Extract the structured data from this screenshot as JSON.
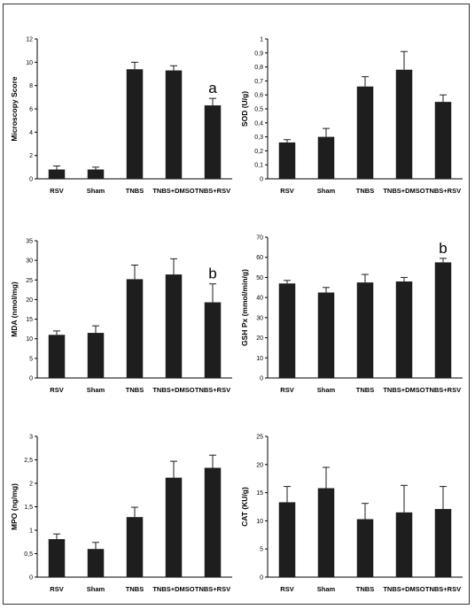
{
  "colors": {
    "bar": "#1e1e1e",
    "axis": "#000000",
    "border": "#333333"
  },
  "chart_data": [
    {
      "type": "bar",
      "ylabel": "Microscopy Score",
      "categories": [
        "RSV",
        "Sham",
        "TNBS",
        "TNBS+DMSO",
        "TNBS+RSV"
      ],
      "values": [
        0.8,
        0.8,
        9.4,
        9.3,
        6.3
      ],
      "errors": [
        0.3,
        0.2,
        0.6,
        0.4,
        0.6
      ],
      "ylim": [
        0,
        12
      ],
      "yticks": [
        "0",
        "2",
        "4",
        "6",
        "8",
        "10",
        "12"
      ],
      "annotations": [
        {
          "category": "TNBS+RSV",
          "text": "a"
        }
      ]
    },
    {
      "type": "bar",
      "ylabel": "SOD (U/g)",
      "categories": [
        "RSV",
        "Sham",
        "TNBS",
        "TNBS+DMSO",
        "TNBS+RSV"
      ],
      "values": [
        0.26,
        0.3,
        0.66,
        0.78,
        0.55
      ],
      "errors": [
        0.02,
        0.06,
        0.07,
        0.13,
        0.05
      ],
      "ylim": [
        0,
        1
      ],
      "yticks": [
        "0",
        "0,1",
        "0,2",
        "0,3",
        "0,4",
        "0,5",
        "0,6",
        "0,7",
        "0,8",
        "0,9",
        "1"
      ],
      "annotations": []
    },
    {
      "type": "bar",
      "ylabel": "MDA (nmol/mg)",
      "categories": [
        "RSV",
        "Sham",
        "TNBS",
        "TNBS+DMSO",
        "TNBS+RSV"
      ],
      "values": [
        11,
        11.5,
        25.2,
        26.4,
        19.3
      ],
      "errors": [
        1,
        1.8,
        3.6,
        4,
        4.7
      ],
      "ylim": [
        0,
        35
      ],
      "yticks": [
        "0",
        "5",
        "10",
        "15",
        "20",
        "25",
        "30",
        "35"
      ],
      "annotations": [
        {
          "category": "TNBS+RSV",
          "text": "b"
        }
      ]
    },
    {
      "type": "bar",
      "ylabel": "GSH Px (mmol/min/g)",
      "categories": [
        "RSV",
        "Sham",
        "TNBS",
        "TNBS+DMSO",
        "TNBS+RSV"
      ],
      "values": [
        47,
        42.5,
        47.5,
        48,
        57.5
      ],
      "errors": [
        1.5,
        2.5,
        4,
        2,
        2
      ],
      "ylim": [
        0,
        70
      ],
      "yticks": [
        "0",
        "10",
        "20",
        "30",
        "40",
        "50",
        "60",
        "70"
      ],
      "annotations": [
        {
          "category": "TNBS+RSV",
          "text": "b"
        }
      ]
    },
    {
      "type": "bar",
      "ylabel": "MPO (ng/mg)",
      "categories": [
        "RSV",
        "Sham",
        "TNBS",
        "TNBS+DMSO",
        "TNBS+RSV"
      ],
      "values": [
        0.81,
        0.6,
        1.28,
        2.12,
        2.33
      ],
      "errors": [
        0.11,
        0.14,
        0.21,
        0.35,
        0.27
      ],
      "ylim": [
        0,
        3
      ],
      "yticks": [
        "0",
        "0,5",
        "1",
        "1,5",
        "2",
        "2,5",
        "3"
      ],
      "annotations": []
    },
    {
      "type": "bar",
      "ylabel": "CAT (KU/g)",
      "categories": [
        "RSV",
        "Sham",
        "TNBS",
        "TNBS+DMSO",
        "TNBS+RSV"
      ],
      "values": [
        13.3,
        15.8,
        10.3,
        11.5,
        12.1
      ],
      "errors": [
        2.8,
        3.7,
        2.8,
        4.8,
        4
      ],
      "ylim": [
        0,
        25
      ],
      "yticks": [
        "0",
        "5",
        "10",
        "15",
        "20",
        "25"
      ],
      "annotations": []
    }
  ]
}
